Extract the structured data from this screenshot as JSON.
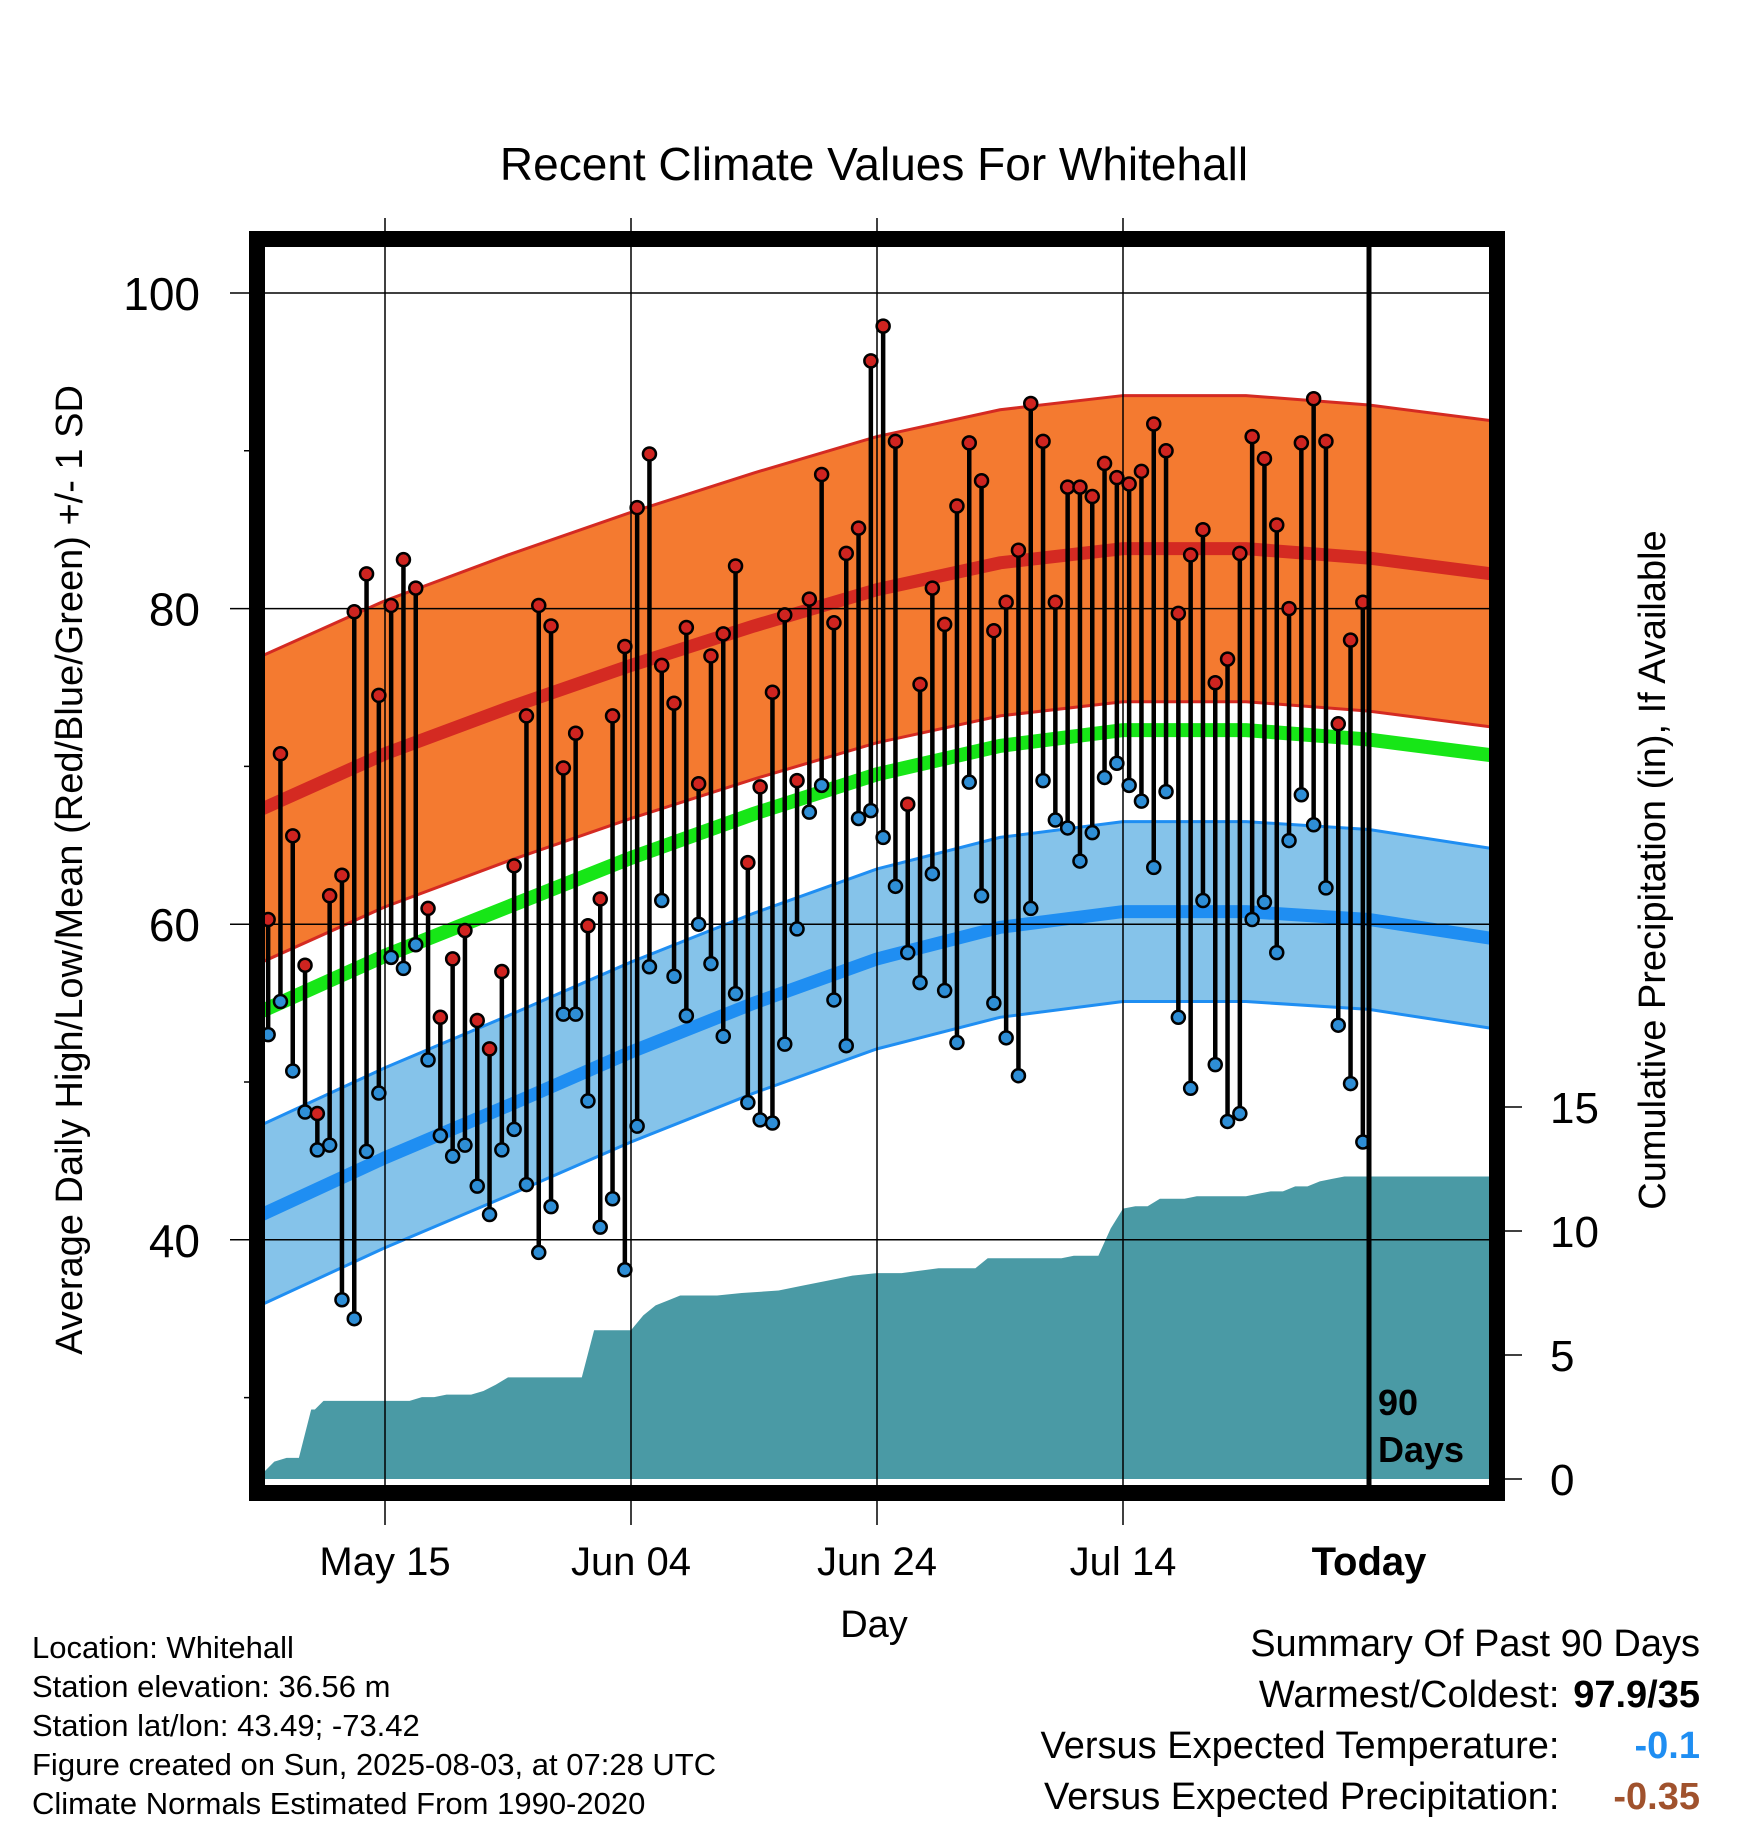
{
  "chart_data": {
    "type": "line",
    "title": "Recent Climate Values For Whitehall",
    "xlabel": "Day",
    "ylabel": "Average Daily High/Low/Mean (Red/Blue/Green) +/- 1 SD",
    "ylabel_right": "Cumulative Precipitation (in), If Available",
    "x_tick_labels": [
      "May 15",
      "Jun 04",
      "Jun 24",
      "Jul 14",
      "Today"
    ],
    "x_tick_days": [
      10,
      30,
      50,
      70,
      90
    ],
    "y_ticks": [
      40,
      60,
      80,
      100
    ],
    "ylim": [
      25,
      104
    ],
    "y2_ticks": [
      0,
      5,
      10,
      15
    ],
    "x_range_days": [
      0,
      100
    ],
    "today_day": 90,
    "today_label_line1": "90",
    "today_label_line2": "Days",
    "colors": {
      "high_band": "#f47a30",
      "high_line": "#d42a22",
      "low_band": "#85c3ea",
      "low_line": "#1f8ef2",
      "mean_line": "#17e617",
      "precip": "#4a9aa5",
      "high_dot": "#cf2420",
      "low_dot": "#2e8ed6"
    },
    "normals": {
      "days": [
        0,
        10,
        20,
        30,
        40,
        50,
        60,
        70,
        80,
        90,
        100
      ],
      "high_mean": [
        67.3,
        70.8,
        73.7,
        76.4,
        78.9,
        81.2,
        82.9,
        83.8,
        83.8,
        83.2,
        82.2
      ],
      "high_sd": 9.7,
      "low_mean": [
        41.6,
        45.2,
        48.5,
        51.9,
        55.0,
        57.8,
        59.8,
        60.8,
        60.8,
        60.3,
        59.1
      ],
      "low_sd": 5.7,
      "mean": [
        54.5,
        58.0,
        61.1,
        64.2,
        67.0,
        69.5,
        71.3,
        72.3,
        72.3,
        71.7,
        70.7
      ]
    },
    "daily": {
      "days": [
        0,
        1,
        2,
        3,
        4,
        5,
        6,
        7,
        8,
        9,
        10,
        11,
        12,
        13,
        14,
        15,
        16,
        17,
        18,
        19,
        20,
        21,
        22,
        23,
        24,
        25,
        26,
        27,
        28,
        29,
        30,
        31,
        32,
        33,
        34,
        35,
        36,
        37,
        38,
        39,
        40,
        41,
        42,
        43,
        44,
        45,
        46,
        47,
        48,
        49,
        50,
        51,
        52,
        53,
        54,
        55,
        56,
        57,
        58,
        59,
        60,
        61,
        62,
        63,
        64,
        65,
        66,
        67,
        68,
        69,
        70,
        71,
        72,
        73,
        74,
        75,
        76,
        77,
        78,
        79,
        80,
        81,
        82,
        83,
        84,
        85,
        86,
        87,
        88,
        89
      ],
      "high": [
        60.3,
        70.8,
        65.6,
        57.4,
        48.0,
        61.8,
        63.1,
        79.8,
        82.2,
        74.5,
        80.2,
        83.1,
        81.3,
        61.0,
        54.1,
        57.8,
        59.6,
        53.9,
        52.1,
        57.0,
        63.7,
        73.2,
        80.2,
        78.9,
        69.9,
        72.1,
        59.9,
        61.6,
        73.2,
        77.6,
        86.4,
        89.8,
        76.4,
        74.0,
        78.8,
        68.9,
        77.0,
        78.4,
        82.7,
        63.9,
        68.7,
        74.7,
        79.6,
        69.1,
        80.6,
        88.5,
        79.1,
        83.5,
        85.1,
        95.7,
        97.9,
        90.6,
        67.6,
        75.2,
        81.3,
        79.0,
        86.5,
        90.5,
        88.1,
        78.6,
        80.4,
        83.7,
        93.0,
        90.6,
        80.4,
        87.7,
        87.7,
        87.1,
        89.2,
        88.3,
        87.9,
        88.7,
        91.7,
        90.0,
        79.7,
        83.4,
        85.0,
        75.3,
        76.8,
        83.5,
        90.9,
        89.5,
        85.3,
        80.0,
        90.5,
        93.3,
        90.6,
        72.7,
        78.0,
        80.4
      ],
      "low": [
        53.0,
        55.1,
        50.7,
        48.1,
        45.7,
        46.0,
        36.2,
        35.0,
        45.6,
        49.3,
        57.9,
        57.2,
        58.7,
        51.4,
        46.6,
        45.3,
        46.0,
        43.4,
        41.6,
        45.7,
        47.0,
        43.5,
        39.2,
        42.1,
        54.3,
        54.3,
        48.8,
        40.8,
        42.6,
        38.1,
        47.2,
        57.3,
        61.5,
        56.7,
        54.2,
        60.0,
        57.5,
        52.9,
        55.6,
        48.7,
        47.6,
        47.4,
        52.4,
        59.7,
        67.1,
        68.8,
        55.2,
        52.3,
        66.7,
        67.2,
        65.5,
        62.4,
        58.2,
        56.3,
        63.2,
        55.8,
        52.5,
        69.0,
        61.8,
        55.0,
        52.8,
        50.4,
        61.0,
        69.1,
        66.6,
        66.1,
        64.0,
        65.8,
        69.3,
        70.2,
        68.8,
        67.8,
        63.6,
        68.4,
        54.1,
        49.6,
        61.5,
        51.1,
        47.5,
        48.0,
        60.3,
        61.4,
        58.2,
        65.3,
        68.2,
        66.3,
        62.3,
        53.6,
        49.9,
        46.2
      ]
    },
    "precipitation": {
      "days": [
        0,
        1,
        2,
        3,
        4,
        4.3,
        5,
        12,
        13,
        14,
        15,
        17,
        18,
        19,
        20,
        26,
        27,
        30,
        31,
        32,
        33,
        34,
        37,
        39,
        42,
        43,
        44,
        46,
        48,
        50,
        52,
        55,
        58,
        59,
        60,
        64,
        65,
        66,
        68,
        69,
        70,
        71,
        72,
        73,
        75,
        76,
        79,
        80,
        81,
        82,
        83,
        84,
        85,
        86,
        87,
        88,
        90,
        100
      ],
      "values": [
        0.2,
        0.7,
        0.85,
        0.85,
        2.8,
        2.8,
        3.15,
        3.15,
        3.3,
        3.3,
        3.4,
        3.4,
        3.55,
        3.8,
        4.1,
        4.1,
        6.0,
        6.0,
        6.6,
        7.0,
        7.2,
        7.4,
        7.4,
        7.5,
        7.6,
        7.7,
        7.8,
        8.0,
        8.2,
        8.3,
        8.3,
        8.5,
        8.5,
        8.9,
        8.9,
        8.9,
        8.9,
        9.0,
        9.0,
        10.1,
        10.9,
        11.0,
        11.0,
        11.3,
        11.3,
        11.4,
        11.4,
        11.4,
        11.5,
        11.6,
        11.6,
        11.8,
        11.8,
        12.0,
        12.1,
        12.2,
        12.2,
        12.2
      ],
      "note_hidden": ""
    }
  },
  "footer": {
    "location": "Location: Whitehall",
    "elevation": "Station elevation: 36.56 m",
    "latlon": "Station lat/lon: 43.49; -73.42",
    "created": "Figure created on Sun, 2025-08-03, at 07:28 UTC",
    "normals": "Climate Normals Estimated From 1990-2020"
  },
  "summary": {
    "title": "Summary Of Past 90 Days",
    "warm_cold_label": "Warmest/Coldest:",
    "warm_cold_value": "97.9/35",
    "temp_label": "Versus Expected Temperature:",
    "temp_value": "-0.1",
    "temp_color": "#1f8ef2",
    "precip_label": "Versus Expected Precipitation:",
    "precip_value": "-0.35",
    "precip_color": "#a0522d"
  }
}
